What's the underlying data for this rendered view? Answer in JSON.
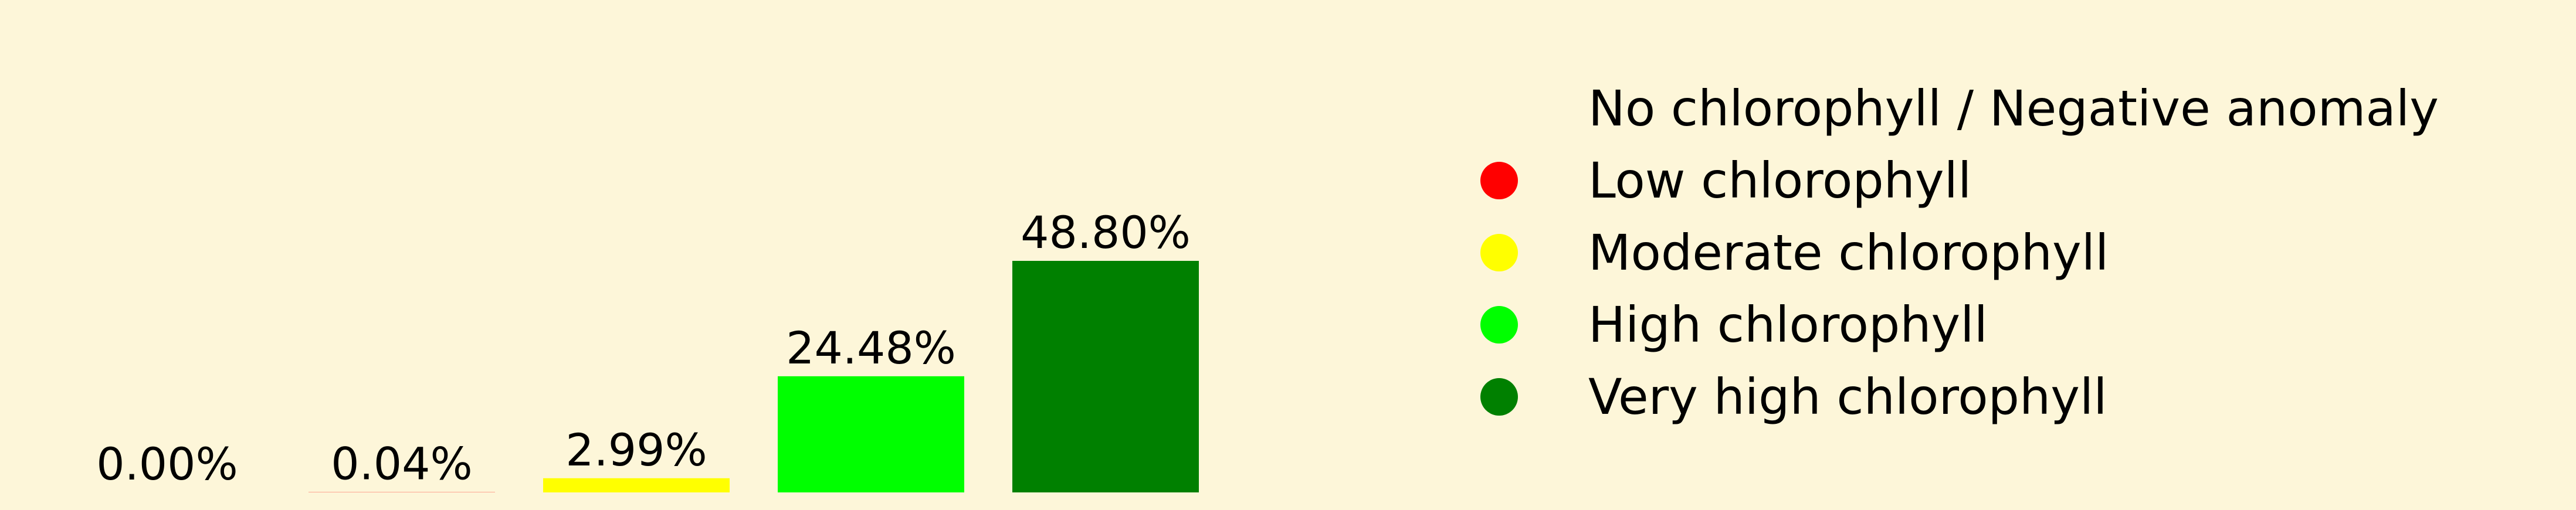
{
  "chart_data": {
    "type": "bar",
    "categories": [
      "No chlorophyll / Negative anomaly",
      "Low chlorophyll",
      "Moderate chlorophyll",
      "High chlorophyll",
      "Very high chlorophyll"
    ],
    "values": [
      0.0,
      0.04,
      2.99,
      24.48,
      48.8
    ],
    "data_labels": [
      "0.00%",
      "0.04%",
      "2.99%",
      "24.48%",
      "48.80%"
    ],
    "colors": [
      "#fdf6d9",
      "#ff0000",
      "#ffff00",
      "#00ff00",
      "#008000"
    ],
    "ylim": [
      0,
      48.8
    ],
    "grid": false,
    "axes_visible": false,
    "legend_position": "right",
    "background_color": "#fdf6d9"
  }
}
